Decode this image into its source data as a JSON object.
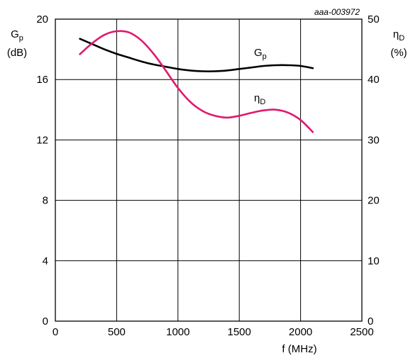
{
  "chart_data": {
    "type": "line",
    "figure_code": "aaa-003972",
    "x_axis": {
      "label": "f (MHz)",
      "range": [
        0,
        2500
      ],
      "ticks": [
        "0",
        "500",
        "1000",
        "1500",
        "2000",
        "2500"
      ],
      "tick_values": [
        0,
        500,
        1000,
        1500,
        2000,
        2500
      ]
    },
    "y_left": {
      "label_main": "G",
      "label_sub": "p",
      "label_unit": "(dB)",
      "range": [
        0,
        20
      ],
      "ticks": [
        "0",
        "4",
        "8",
        "12",
        "16",
        "20"
      ],
      "tick_values": [
        0,
        4,
        8,
        12,
        16,
        20
      ]
    },
    "y_right": {
      "label_main": "η",
      "label_sub": "D",
      "label_unit": "(%)",
      "range": [
        0,
        50
      ],
      "ticks": [
        "0",
        "10",
        "20",
        "30",
        "40",
        "50"
      ],
      "tick_values": [
        0,
        10,
        20,
        30,
        40,
        50
      ]
    },
    "grid": true,
    "series": [
      {
        "name_main": "G",
        "name_sub": "p",
        "axis": "left",
        "color": "#000000",
        "x": [
          200,
          300,
          400,
          500,
          600,
          700,
          800,
          900,
          1000,
          1100,
          1200,
          1300,
          1400,
          1500,
          1600,
          1700,
          1800,
          1900,
          2000,
          2100
        ],
        "y": [
          18.7,
          18.35,
          18.0,
          17.7,
          17.45,
          17.2,
          17.0,
          16.85,
          16.7,
          16.6,
          16.55,
          16.55,
          16.6,
          16.7,
          16.8,
          16.9,
          16.95,
          16.95,
          16.9,
          16.75
        ]
      },
      {
        "name_main": "η",
        "name_sub": "D",
        "axis": "right",
        "color": "#e0186c",
        "x": [
          200,
          300,
          400,
          500,
          600,
          700,
          800,
          900,
          1000,
          1100,
          1200,
          1300,
          1400,
          1500,
          1600,
          1700,
          1800,
          1900,
          2000,
          2100
        ],
        "y": [
          44.2,
          46.0,
          47.4,
          48.0,
          47.8,
          46.5,
          44.3,
          41.5,
          38.6,
          36.3,
          34.8,
          34.0,
          33.7,
          34.0,
          34.5,
          34.9,
          35.0,
          34.5,
          33.3,
          31.3
        ]
      }
    ]
  }
}
